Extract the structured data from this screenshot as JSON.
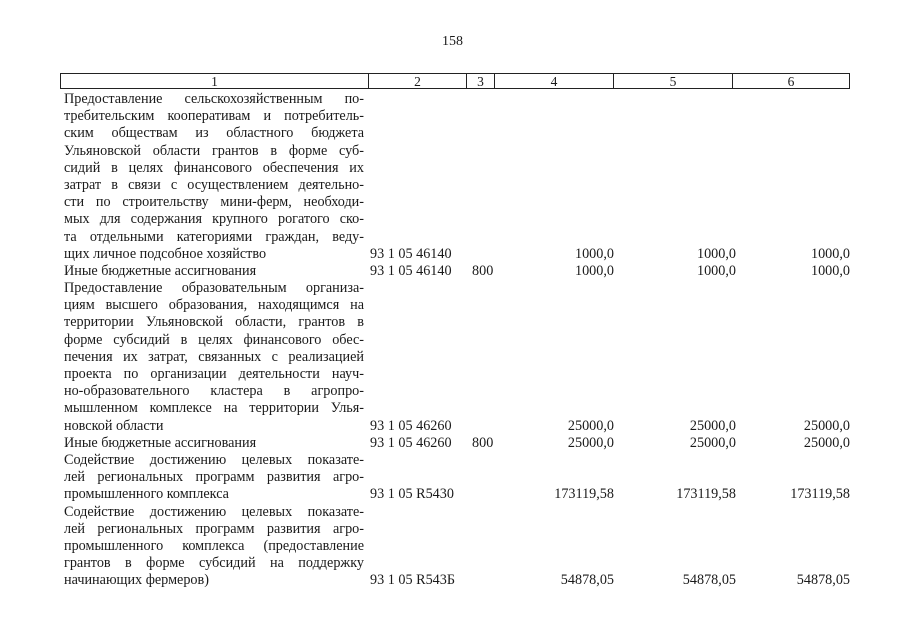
{
  "page_number": "158",
  "header": [
    "1",
    "2",
    "3",
    "4",
    "5",
    "6"
  ],
  "rows": [
    {
      "lines": [
        "Предоставление сельскохозяйственным по-",
        "требительским кооперативам и потребитель-",
        "ским обществам из областного бюджета",
        "Ульяновской области грантов в форме суб-",
        "сидий в целях финансового обеспечения их",
        "затрат в связи с осуществлением деятельно-",
        "сти по строительству мини-ферм, необходи-",
        "мых для содержания крупного рогатого ско-",
        "та отдельными категориями граждан, веду-",
        "щих личное подсобное хозяйство"
      ],
      "code": "93 1 05 46140",
      "vr": "",
      "v4": "1000,0",
      "v5": "1000,0",
      "v6": "1000,0"
    },
    {
      "lines": [
        "Иные бюджетные ассигнования"
      ],
      "code": "93 1 05 46140",
      "vr": "800",
      "v4": "1000,0",
      "v5": "1000,0",
      "v6": "1000,0"
    },
    {
      "lines": [
        "Предоставление образовательным организа-",
        "циям высшего образования, находящимся на",
        "территории Ульяновской области, грантов в",
        "форме субсидий в целях финансового обес-",
        "печения их затрат, связанных с реализацией",
        "проекта по организации деятельности науч-",
        "но-образовательного кластера в агропро-",
        "мышленном комплексе на территории Улья-",
        "новской области"
      ],
      "code": "93 1 05 46260",
      "vr": "",
      "v4": "25000,0",
      "v5": "25000,0",
      "v6": "25000,0"
    },
    {
      "lines": [
        "Иные бюджетные ассигнования"
      ],
      "code": "93 1 05 46260",
      "vr": "800",
      "v4": "25000,0",
      "v5": "25000,0",
      "v6": "25000,0"
    },
    {
      "lines": [
        "Содействие достижению целевых показате-",
        "лей региональных программ развития агро-",
        "промышленного комплекса"
      ],
      "code": "93 1 05 R5430",
      "vr": "",
      "v4": "173119,58",
      "v5": "173119,58",
      "v6": "173119,58"
    },
    {
      "lines": [
        "Содействие достижению целевых показате-",
        "лей региональных программ развития агро-",
        "промышленного комплекса (предоставление",
        "грантов в форме субсидий на поддержку",
        "начинающих фермеров)"
      ],
      "code": "93 1 05 R543Б",
      "vr": "",
      "v4": "54878,05",
      "v5": "54878,05",
      "v6": "54878,05"
    }
  ]
}
